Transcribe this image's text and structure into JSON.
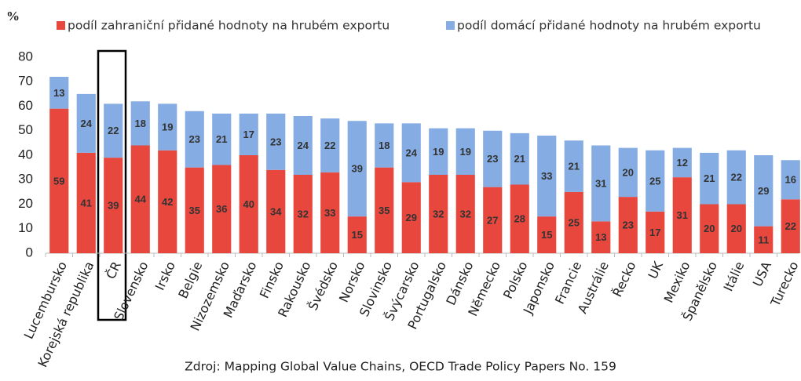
{
  "chart_data": {
    "type": "stacked_bar",
    "y_label": "%",
    "source": "Zdroj: Mapping Global Value Chains, OECD Trade Policy Papers No. 159",
    "categories": [
      "Lucembursko",
      "Korejská republika",
      "ČR",
      "Slovensko",
      "Irsko",
      "Belgie",
      "Nizozemsko",
      "Maďarsko",
      "Finsko",
      "Rakousko",
      "Švédsko",
      "Norsko",
      "Slovinsko",
      "Švýcarsko",
      "Portugalsko",
      "Dánsko",
      "Německo",
      "Polsko",
      "Japonsko",
      "Francie",
      "Austrálie",
      "Řecko",
      "UK",
      "Mexiko",
      "Španělsko",
      "Itálie",
      "USA",
      "Turecko"
    ],
    "series": [
      {
        "name": "podíl zahraniční přidané hodnoty na hrubém exportu",
        "color": "#e8473e",
        "values": [
          59,
          41,
          39,
          44,
          42,
          35,
          36,
          40,
          34,
          32,
          33,
          15,
          35,
          29,
          32,
          32,
          27,
          28,
          15,
          25,
          13,
          23,
          17,
          31,
          20,
          20,
          11,
          22
        ]
      },
      {
        "name": "podíl domácí přidané hodnoty na hrubém exportu",
        "color": "#85ade3",
        "values": [
          13,
          24,
          22,
          18,
          19,
          23,
          21,
          17,
          23,
          24,
          22,
          39,
          18,
          24,
          19,
          19,
          23,
          21,
          33,
          21,
          31,
          20,
          25,
          12,
          21,
          22,
          29,
          16
        ]
      }
    ],
    "ylim": [
      0,
      80
    ],
    "yticks": [
      0,
      10,
      20,
      30,
      40,
      50,
      60,
      70,
      80
    ]
  }
}
